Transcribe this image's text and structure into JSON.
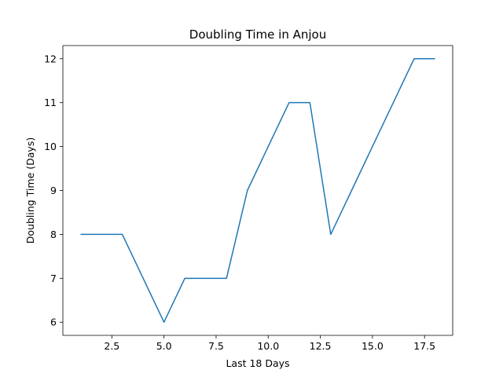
{
  "chart_data": {
    "type": "line",
    "title": "Doubling Time in  Anjou",
    "xlabel": "Last 18 Days",
    "ylabel": "Doubling Time (Days)",
    "xlim": [
      0.15,
      18.85
    ],
    "ylim": [
      5.7,
      12.3
    ],
    "x_ticks": [
      2.5,
      5.0,
      7.5,
      10.0,
      12.5,
      15.0,
      17.5
    ],
    "x_tick_labels": [
      "2.5",
      "5.0",
      "7.5",
      "10.0",
      "12.5",
      "15.0",
      "17.5"
    ],
    "y_ticks": [
      6,
      7,
      8,
      9,
      10,
      11,
      12
    ],
    "y_tick_labels": [
      "6",
      "7",
      "8",
      "9",
      "10",
      "11",
      "12"
    ],
    "grid": false,
    "line_color": "#1f77b4",
    "series": [
      {
        "x": [
          1,
          2,
          3,
          4,
          5,
          6,
          7,
          8,
          9,
          10,
          11,
          12,
          13,
          14,
          15,
          16,
          17,
          18
        ],
        "values": [
          8,
          8,
          8,
          7,
          6,
          7,
          7,
          7,
          9,
          10,
          11,
          11,
          8,
          9,
          10,
          11,
          12,
          12
        ]
      }
    ]
  }
}
